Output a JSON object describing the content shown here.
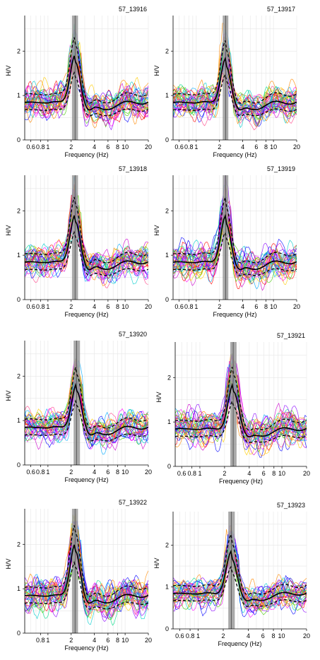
{
  "chart_data": [
    {
      "type": "line",
      "title": "57_13916",
      "xlabel": "Frequency (Hz)",
      "ylabel": "H/V",
      "xscale": "log",
      "xlim": [
        0.5,
        20
      ],
      "ylim": [
        0,
        2.8
      ],
      "x_ticks": [
        {
          "v": 0.6,
          "l": "0.6"
        },
        {
          "v": 0.8,
          "l": "0.8"
        },
        {
          "v": 1,
          "l": "1"
        },
        {
          "v": 2,
          "l": "2"
        },
        {
          "v": 4,
          "l": "4"
        },
        {
          "v": 6,
          "l": "6"
        },
        {
          "v": 8,
          "l": "8"
        },
        {
          "v": 10,
          "l": "10"
        },
        {
          "v": 20,
          "l": "20"
        }
      ],
      "y_ticks": [
        0,
        1,
        2
      ],
      "peak_band": [
        2.05,
        2.45
      ],
      "peak_freq": 2.25,
      "peak_amp": 1.95,
      "grid": true,
      "legend": "none"
    },
    {
      "type": "line",
      "title": "57_13917",
      "xlabel": "Frequency (Hz)",
      "ylabel": "H/V",
      "xscale": "log",
      "xlim": [
        0.5,
        20
      ],
      "ylim": [
        0,
        2.8
      ],
      "x_ticks": [
        {
          "v": 0.6,
          "l": "0.6"
        },
        {
          "v": 0.8,
          "l": "0.8"
        },
        {
          "v": 1,
          "l": "1"
        },
        {
          "v": 2,
          "l": "2"
        },
        {
          "v": 4,
          "l": "4"
        },
        {
          "v": 6,
          "l": "6"
        },
        {
          "v": 8,
          "l": "8"
        },
        {
          "v": 10,
          "l": "10"
        },
        {
          "v": 20,
          "l": "20"
        }
      ],
      "y_ticks": [
        0,
        1,
        2
      ],
      "peak_band": [
        2.2,
        2.6
      ],
      "peak_freq": 2.4,
      "peak_amp": 1.85,
      "grid": true,
      "legend": "none"
    },
    {
      "type": "line",
      "title": "57_13918",
      "xlabel": "Frequency (Hz)",
      "ylabel": "H/V",
      "xscale": "log",
      "xlim": [
        0.5,
        20
      ],
      "ylim": [
        0,
        2.8
      ],
      "x_ticks": [
        {
          "v": 0.6,
          "l": "0.6"
        },
        {
          "v": 0.8,
          "l": "0.8"
        },
        {
          "v": 1,
          "l": "1"
        },
        {
          "v": 2,
          "l": "2"
        },
        {
          "v": 4,
          "l": "4"
        },
        {
          "v": 6,
          "l": "6"
        },
        {
          "v": 8,
          "l": "8"
        },
        {
          "v": 10,
          "l": "10"
        },
        {
          "v": 20,
          "l": "20"
        }
      ],
      "y_ticks": [
        0,
        1,
        2
      ],
      "peak_band": [
        2.05,
        2.45
      ],
      "peak_freq": 2.25,
      "peak_amp": 1.95,
      "grid": true,
      "legend": "none"
    },
    {
      "type": "line",
      "title": "57_13919",
      "xlabel": "Frequency (Hz)",
      "ylabel": "H/V",
      "xscale": "log",
      "xlim": [
        0.5,
        20
      ],
      "ylim": [
        0,
        2.8
      ],
      "x_ticks": [
        {
          "v": 0.6,
          "l": "0.6"
        },
        {
          "v": 0.8,
          "l": "0.8"
        },
        {
          "v": 1,
          "l": "1"
        },
        {
          "v": 2,
          "l": "2"
        },
        {
          "v": 4,
          "l": "4"
        },
        {
          "v": 6,
          "l": "6"
        },
        {
          "v": 8,
          "l": "8"
        },
        {
          "v": 10,
          "l": "10"
        },
        {
          "v": 20,
          "l": "20"
        }
      ],
      "y_ticks": [
        0,
        1,
        2
      ],
      "peak_band": [
        2.2,
        2.6
      ],
      "peak_freq": 2.4,
      "peak_amp": 1.9,
      "grid": true,
      "legend": "none"
    },
    {
      "type": "line",
      "title": "57_13920",
      "xlabel": "Frequency (Hz)",
      "ylabel": "H/V",
      "xscale": "log",
      "xlim": [
        0.5,
        20
      ],
      "ylim": [
        0,
        2.8
      ],
      "x_ticks": [
        {
          "v": 0.6,
          "l": "0.6"
        },
        {
          "v": 0.8,
          "l": "0.8"
        },
        {
          "v": 1,
          "l": "1"
        },
        {
          "v": 2,
          "l": "2"
        },
        {
          "v": 4,
          "l": "4"
        },
        {
          "v": 6,
          "l": "6"
        },
        {
          "v": 8,
          "l": "8"
        },
        {
          "v": 10,
          "l": "10"
        },
        {
          "v": 20,
          "l": "20"
        }
      ],
      "y_ticks": [
        0,
        1,
        2
      ],
      "peak_band": [
        2.15,
        2.6
      ],
      "peak_freq": 2.35,
      "peak_amp": 1.85,
      "grid": true,
      "legend": "none"
    },
    {
      "type": "line",
      "title": "57_13921",
      "xlabel": "Frequency (Hz)",
      "ylabel": "H/V",
      "xscale": "log",
      "xlim": [
        0.5,
        20
      ],
      "ylim": [
        0,
        2.8
      ],
      "x_ticks": [
        {
          "v": 0.6,
          "l": "0.6"
        },
        {
          "v": 0.8,
          "l": "0.8"
        },
        {
          "v": 1,
          "l": "1"
        },
        {
          "v": 2,
          "l": "2"
        },
        {
          "v": 4,
          "l": "4"
        },
        {
          "v": 6,
          "l": "6"
        },
        {
          "v": 8,
          "l": "8"
        },
        {
          "v": 10,
          "l": "10"
        },
        {
          "v": 20,
          "l": "20"
        }
      ],
      "y_ticks": [
        0,
        1,
        2
      ],
      "peak_band": [
        2.35,
        2.8
      ],
      "peak_freq": 2.55,
      "peak_amp": 1.85,
      "grid": true,
      "legend": "none"
    },
    {
      "type": "line",
      "title": "57_13922",
      "xlabel": "Frequency (Hz)",
      "ylabel": "H/V",
      "xscale": "log",
      "xlim": [
        0.5,
        20
      ],
      "ylim": [
        0,
        2.8
      ],
      "x_ticks": [
        {
          "v": 0.8,
          "l": "0.8"
        },
        {
          "v": 1,
          "l": "1"
        },
        {
          "v": 2,
          "l": "2"
        },
        {
          "v": 4,
          "l": "4"
        },
        {
          "v": 6,
          "l": "6"
        },
        {
          "v": 8,
          "l": "8"
        },
        {
          "v": 10,
          "l": "10"
        },
        {
          "v": 20,
          "l": "20"
        }
      ],
      "y_ticks": [
        0,
        1,
        2
      ],
      "peak_band": [
        2.05,
        2.45
      ],
      "peak_freq": 2.25,
      "peak_amp": 2.05,
      "grid": true,
      "legend": "none"
    },
    {
      "type": "line",
      "title": "57_13923",
      "xlabel": "Frequency (Hz)",
      "ylabel": "H/V",
      "xscale": "log",
      "xlim": [
        0.5,
        20
      ],
      "ylim": [
        0,
        2.8
      ],
      "x_ticks": [
        {
          "v": 0.6,
          "l": "0.6"
        },
        {
          "v": 0.8,
          "l": "0.8"
        },
        {
          "v": 1,
          "l": "1"
        },
        {
          "v": 2,
          "l": "2"
        },
        {
          "v": 4,
          "l": "4"
        },
        {
          "v": 6,
          "l": "6"
        },
        {
          "v": 8,
          "l": "8"
        },
        {
          "v": 10,
          "l": "10"
        },
        {
          "v": 20,
          "l": "20"
        }
      ],
      "y_ticks": [
        0,
        1,
        2
      ],
      "peak_band": [
        2.3,
        2.75
      ],
      "peak_freq": 2.5,
      "peak_amp": 1.85,
      "grid": true,
      "legend": "none"
    }
  ],
  "style": {
    "mean_color": "#000000",
    "band_color": "#9a9a9a",
    "grid_color": "#e6e6e6",
    "window_colors": [
      "#ff00ff",
      "#cc00cc",
      "#ff0000",
      "#0000ff",
      "#00aaff",
      "#00dd88",
      "#44cc00",
      "#ffcc00",
      "#ff8800",
      "#8800ff",
      "#00cccc",
      "#ff4488"
    ]
  }
}
